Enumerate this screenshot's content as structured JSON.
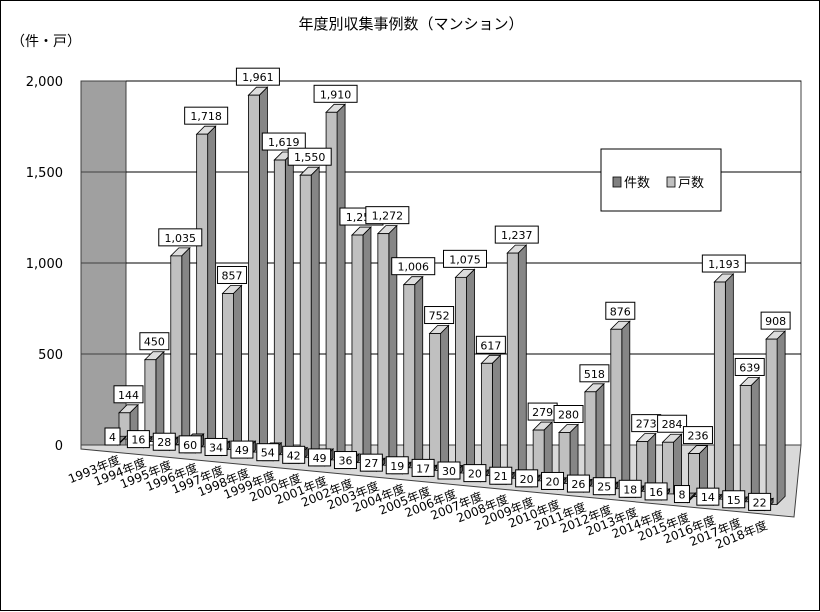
{
  "chart_data": {
    "type": "bar",
    "title": "年度別収集事例数（マンション）",
    "ylabel": "（件・戸）",
    "ylim": [
      0,
      2000
    ],
    "yticks": [
      "0",
      "500",
      "1,000",
      "1,500",
      "2,000"
    ],
    "categories": [
      "1993年度",
      "1994年度",
      "1995年度",
      "1996年度",
      "1997年度",
      "1998年度",
      "1999年度",
      "2000年度",
      "2001年度",
      "2002年度",
      "2003年度",
      "2004年度",
      "2005年度",
      "2006年度",
      "2007年度",
      "2008年度",
      "2009年度",
      "2010年度",
      "2011年度",
      "2012年度",
      "2013年度",
      "2014年度",
      "2015年度",
      "2016年度",
      "2017年度",
      "2018年度"
    ],
    "series": [
      {
        "name": "件数",
        "color": "#808080",
        "values": [
          4,
          16,
          28,
          60,
          34,
          49,
          54,
          42,
          49,
          36,
          27,
          19,
          17,
          30,
          20,
          21,
          20,
          20,
          26,
          25,
          18,
          16,
          8,
          14,
          15,
          22
        ]
      },
      {
        "name": "戸数",
        "color": "#c0c0c0",
        "values": [
          144,
          450,
          1035,
          1718,
          857,
          1961,
          1619,
          1550,
          1910,
          1250,
          1272,
          1006,
          752,
          1075,
          617,
          1237,
          279,
          280,
          518,
          876,
          273,
          284,
          236,
          1193,
          639,
          908
        ]
      }
    ],
    "labels": {
      "count": [
        "4",
        "16",
        "28",
        "60",
        "34",
        "49",
        "54",
        "42",
        "49",
        "36",
        "27",
        "19",
        "17",
        "30",
        "20",
        "21",
        "20",
        "20",
        "26",
        "25",
        "18",
        "16",
        "8",
        "14",
        "15",
        "22"
      ],
      "units": [
        "144",
        "450",
        "1,035",
        "1,718",
        "857",
        "1,961",
        "1,619",
        "1,550",
        "1,910",
        "1,250",
        "1,272",
        "1,006",
        "752",
        "1,075",
        "617",
        "1,237",
        "279",
        "280",
        "518",
        "876",
        "273",
        "284",
        "236",
        "1,193",
        "639",
        "908"
      ]
    },
    "legend_position": "right",
    "grid": true
  }
}
